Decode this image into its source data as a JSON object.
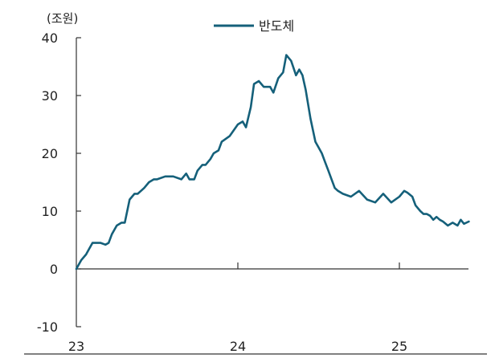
{
  "chart_data": {
    "type": "line",
    "unit_label": "(조원)",
    "title": "",
    "xlabel": "",
    "ylabel": "",
    "ylim": [
      -10,
      40
    ],
    "yticks": [
      -10,
      0,
      10,
      20,
      30,
      40
    ],
    "xlim": [
      0,
      2.45
    ],
    "xticks": [
      {
        "value": 0,
        "label": "23"
      },
      {
        "value": 1,
        "label": "24"
      },
      {
        "value": 2,
        "label": "25"
      }
    ],
    "grid": false,
    "legend": "top-center",
    "colors": {
      "series": "#15607a",
      "axis": "#333333"
    },
    "series": [
      {
        "name": "반도체",
        "x": [
          0,
          0.03,
          0.06,
          0.08,
          0.1,
          0.13,
          0.15,
          0.18,
          0.2,
          0.22,
          0.25,
          0.28,
          0.3,
          0.33,
          0.36,
          0.38,
          0.4,
          0.42,
          0.45,
          0.48,
          0.5,
          0.55,
          0.6,
          0.65,
          0.68,
          0.7,
          0.73,
          0.75,
          0.78,
          0.8,
          0.83,
          0.85,
          0.88,
          0.9,
          0.95,
          1.0,
          1.03,
          1.05,
          1.08,
          1.1,
          1.13,
          1.16,
          1.18,
          1.2,
          1.22,
          1.25,
          1.28,
          1.3,
          1.33,
          1.36,
          1.38,
          1.4,
          1.42,
          1.45,
          1.48,
          1.5,
          1.52,
          1.54,
          1.56,
          1.58,
          1.6,
          1.62,
          1.65,
          1.7,
          1.75,
          1.8,
          1.85,
          1.9,
          1.95,
          2.0,
          2.03,
          2.05,
          2.08,
          2.1,
          2.13,
          2.15,
          2.17,
          2.19,
          2.21,
          2.23,
          2.25,
          2.27,
          2.3,
          2.33,
          2.36,
          2.38,
          2.4,
          2.43
        ],
        "values": [
          0,
          1.5,
          2.5,
          3.5,
          4.5,
          4.5,
          4.5,
          4.2,
          4.5,
          6,
          7.5,
          8,
          8,
          12,
          13,
          13,
          13.5,
          14,
          15,
          15.5,
          15.5,
          16,
          16,
          15.5,
          16.5,
          15.5,
          15.5,
          17,
          18,
          18,
          19,
          20,
          20.5,
          22,
          23,
          25,
          25.5,
          24.5,
          28,
          32,
          32.5,
          31.5,
          31.5,
          31.5,
          30.5,
          33,
          34,
          37,
          36,
          33.5,
          34.5,
          33.5,
          31,
          26,
          22,
          21,
          20,
          18.5,
          17,
          15.5,
          14,
          13.5,
          13,
          12.5,
          13.5,
          12,
          11.5,
          13,
          11.5,
          12.5,
          13.5,
          13.2,
          12.5,
          11,
          10,
          9.5,
          9.5,
          9.2,
          8.5,
          9,
          8.5,
          8.2,
          7.5,
          8,
          7.5,
          8.5,
          7.8,
          8.2
        ]
      }
    ]
  }
}
